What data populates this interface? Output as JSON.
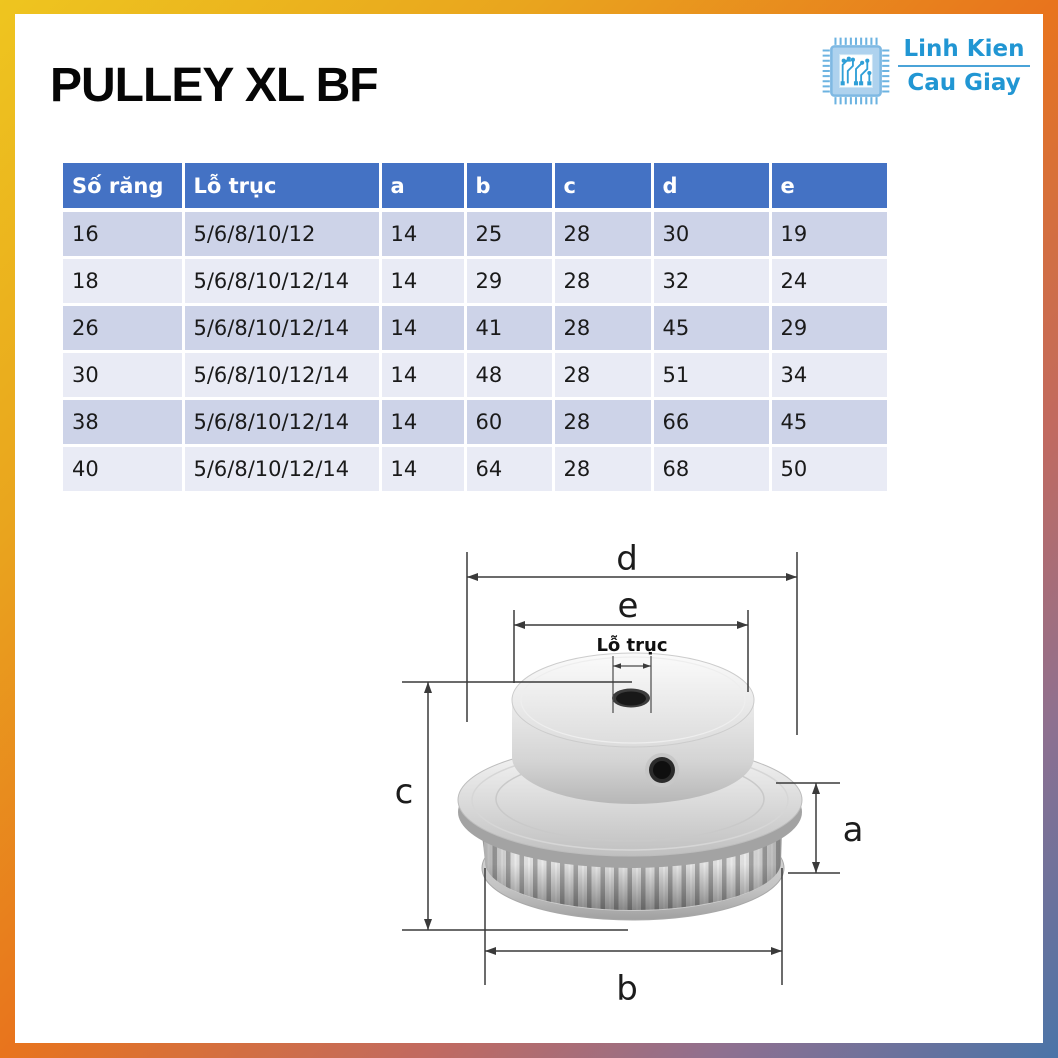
{
  "title": "PULLEY XL BF",
  "logo": {
    "line1": "Linh Kien",
    "line2": "Cau Giay"
  },
  "table": {
    "columns": [
      "Số răng",
      "Lỗ trục",
      "a",
      "b",
      "c",
      "d",
      "e"
    ],
    "rows": [
      [
        "16",
        "5/6/8/10/12",
        "14",
        "25",
        "28",
        "30",
        "19"
      ],
      [
        "18",
        "5/6/8/10/12/14",
        "14",
        "29",
        "28",
        "32",
        "24"
      ],
      [
        "26",
        "5/6/8/10/12/14",
        "14",
        "41",
        "28",
        "45",
        "29"
      ],
      [
        "30",
        "5/6/8/10/12/14",
        "14",
        "48",
        "28",
        "51",
        "34"
      ],
      [
        "38",
        "5/6/8/10/12/14",
        "14",
        "60",
        "28",
        "66",
        "45"
      ],
      [
        "40",
        "5/6/8/10/12/14",
        "14",
        "64",
        "28",
        "68",
        "50"
      ]
    ]
  },
  "diagram": {
    "labels": {
      "d": "d",
      "e": "e",
      "bore": "Lỗ trục",
      "c": "c",
      "a": "a",
      "b": "b"
    }
  },
  "colors": {
    "header_blue": "#4472C4",
    "band_dark": "#CDD3E8",
    "band_light": "#E9EBF5",
    "logo_blue": "#2196D3",
    "frame_yellow": "#EEC51F",
    "frame_orange": "#E8741D",
    "frame_blue": "#4A74A8"
  }
}
